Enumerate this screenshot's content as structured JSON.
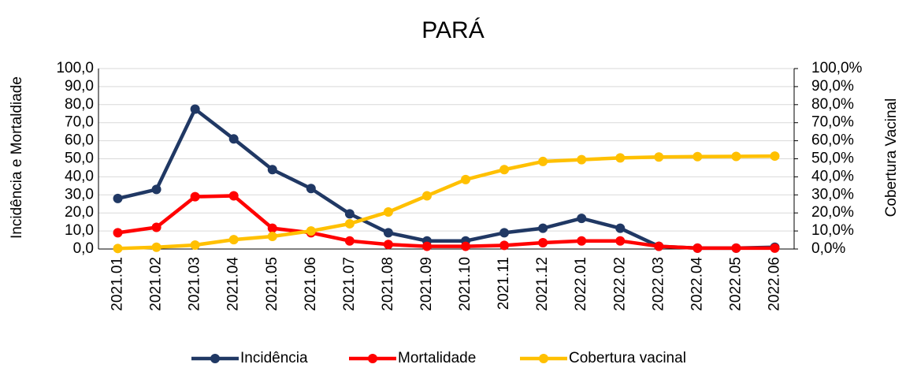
{
  "chart_data": {
    "type": "line",
    "title": "PARÁ",
    "y_label": "Incidência e Mortaldiade",
    "y2_label": "Cobertura Vacinal",
    "categories": [
      "2021.01",
      "2021.02",
      "2021.03",
      "2021.04",
      "2021.05",
      "2021.06",
      "2021.07",
      "2021.08",
      "2021.09",
      "2021.10",
      "2021.11",
      "2021.12",
      "2022.01",
      "2022.02",
      "2022.03",
      "2022.04",
      "2022.05",
      "2022.06"
    ],
    "series": [
      {
        "name": "Incidência",
        "color": "#203864",
        "values": [
          28,
          33,
          77.5,
          61,
          44,
          33.5,
          19.5,
          9,
          4.5,
          4.5,
          9,
          11.5,
          17,
          11.5,
          1.5,
          0.5,
          0.5,
          1
        ]
      },
      {
        "name": "Mortalidade",
        "color": "#ff0000",
        "values": [
          9,
          12,
          29,
          29.5,
          11.5,
          9,
          4.5,
          2.5,
          1.5,
          1.5,
          2,
          3.5,
          4.5,
          4.5,
          1.5,
          0.5,
          0.5,
          0.5
        ]
      },
      {
        "name": "Cobertura vacinal",
        "color": "#ffc000",
        "axis": "y2",
        "values": [
          0.3,
          1,
          2.2,
          5.2,
          7,
          10,
          14,
          20.5,
          29.5,
          38.5,
          44,
          48.5,
          49.5,
          50.5,
          51,
          51.2,
          51.3,
          51.5
        ]
      }
    ],
    "ylim": [
      0,
      100
    ],
    "yticks": [
      {
        "value": 0,
        "label": "0,0"
      },
      {
        "value": 10,
        "label": "10,0"
      },
      {
        "value": 20,
        "label": "20,0"
      },
      {
        "value": 30,
        "label": "30,0"
      },
      {
        "value": 40,
        "label": "40,0"
      },
      {
        "value": 50,
        "label": "50,0"
      },
      {
        "value": 60,
        "label": "60,0"
      },
      {
        "value": 70,
        "label": "70,0"
      },
      {
        "value": 80,
        "label": "80,0"
      },
      {
        "value": 90,
        "label": "90,0"
      },
      {
        "value": 100,
        "label": "100,0"
      }
    ],
    "y2lim": [
      0,
      100
    ],
    "y2ticks": [
      {
        "value": 0,
        "label": "0,0%"
      },
      {
        "value": 10,
        "label": "10,0%"
      },
      {
        "value": 20,
        "label": "20,0%"
      },
      {
        "value": 30,
        "label": "30,0%"
      },
      {
        "value": 40,
        "label": "40,0%"
      },
      {
        "value": 50,
        "label": "50,0%"
      },
      {
        "value": 60,
        "label": "60,0%"
      },
      {
        "value": 70,
        "label": "70,0%"
      },
      {
        "value": 80,
        "label": "80,0%"
      },
      {
        "value": 90,
        "label": "90,0%"
      },
      {
        "value": 100,
        "label": "100,0%"
      }
    ],
    "grid": true,
    "legend": "bottom"
  }
}
